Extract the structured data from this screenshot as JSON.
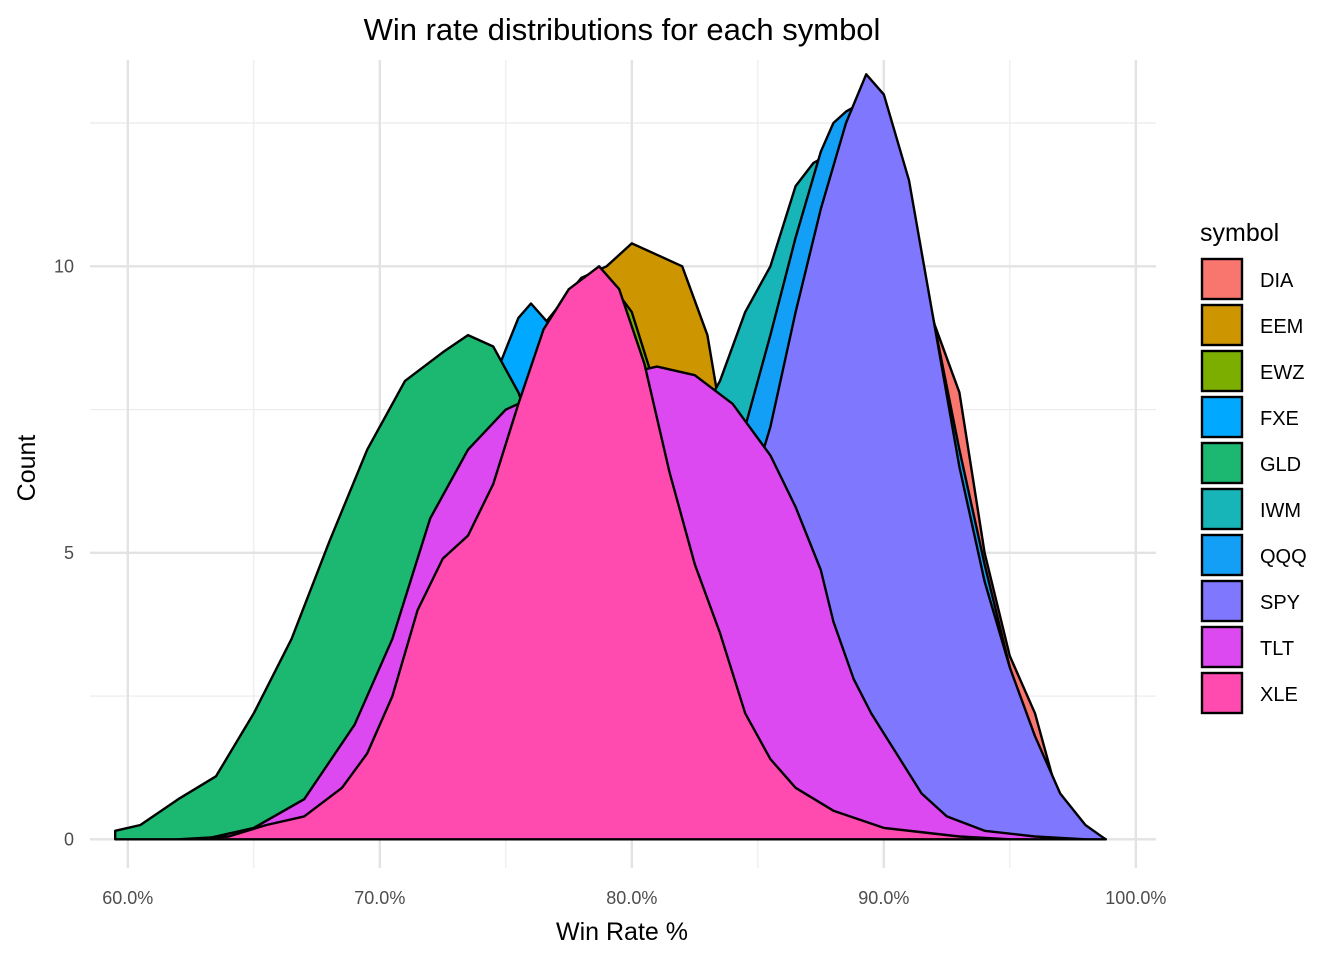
{
  "chart_data": {
    "type": "area",
    "title": "Win rate distributions for each symbol",
    "xlabel": "Win Rate %",
    "ylabel": "Count",
    "xlim": [
      58.5,
      100.8
    ],
    "ylim": [
      -0.5,
      13.6
    ],
    "x_ticks": [
      60,
      70,
      80,
      90,
      100
    ],
    "x_tick_labels": [
      "60.0%",
      "70.0%",
      "80.0%",
      "90.0%",
      "100.0%"
    ],
    "y_ticks": [
      0,
      5,
      10
    ],
    "y_tick_labels": [
      "0",
      "5",
      "10"
    ],
    "grid": true,
    "legend_title": "symbol",
    "legend_position": "right",
    "series": [
      {
        "name": "DIA",
        "color": "#F8766D",
        "points": [
          [
            78,
            0
          ],
          [
            80,
            0.8
          ],
          [
            82,
            2.5
          ],
          [
            84,
            5
          ],
          [
            86,
            8.5
          ],
          [
            88,
            10.3
          ],
          [
            89,
            10.8
          ],
          [
            90,
            10.5
          ],
          [
            91,
            11.1
          ],
          [
            92,
            9
          ],
          [
            93,
            7.8
          ],
          [
            94,
            5
          ],
          [
            95,
            3.2
          ],
          [
            96,
            2.2
          ],
          [
            97,
            0.6
          ],
          [
            98,
            0.2
          ],
          [
            98.8,
            0
          ]
        ]
      },
      {
        "name": "EEM",
        "color": "#CD9600",
        "points": [
          [
            66,
            0
          ],
          [
            68,
            0.6
          ],
          [
            70,
            1.6
          ],
          [
            72,
            3.5
          ],
          [
            74,
            6.3
          ],
          [
            76,
            8.7
          ],
          [
            78,
            9.8
          ],
          [
            79,
            10.0
          ],
          [
            80,
            10.4
          ],
          [
            81,
            10.2
          ],
          [
            82,
            10.0
          ],
          [
            83,
            8.8
          ],
          [
            84,
            6.2
          ],
          [
            86,
            3.5
          ],
          [
            88,
            1.6
          ],
          [
            90,
            0.5
          ],
          [
            93,
            0
          ]
        ]
      },
      {
        "name": "EWZ",
        "color": "#7CAE00",
        "points": [
          [
            66,
            0
          ],
          [
            68,
            0.5
          ],
          [
            70,
            1.5
          ],
          [
            72,
            3.4
          ],
          [
            74,
            6.0
          ],
          [
            76,
            8.5
          ],
          [
            78,
            9.5
          ],
          [
            79,
            9.8
          ],
          [
            80,
            9.2
          ],
          [
            81,
            7.8
          ],
          [
            82,
            6.2
          ],
          [
            84,
            3.2
          ],
          [
            86,
            1.2
          ],
          [
            88,
            0.3
          ],
          [
            90,
            0
          ]
        ]
      },
      {
        "name": "FXE",
        "color": "#00A9FF",
        "points": [
          [
            65,
            0
          ],
          [
            67,
            0.5
          ],
          [
            69,
            1.5
          ],
          [
            71,
            3.6
          ],
          [
            73,
            6.2
          ],
          [
            74.5,
            8.0
          ],
          [
            75.5,
            9.1
          ],
          [
            76,
            9.35
          ],
          [
            76.7,
            9.0
          ],
          [
            77.5,
            8.4
          ],
          [
            78.5,
            8.7
          ],
          [
            79.5,
            8.3
          ],
          [
            80.5,
            7.0
          ],
          [
            82,
            5.0
          ],
          [
            84,
            2.5
          ],
          [
            86,
            1.0
          ],
          [
            88,
            0.2
          ],
          [
            90,
            0
          ]
        ]
      },
      {
        "name": "GLD",
        "color": "#1CB771",
        "points": [
          [
            59.5,
            0.15
          ],
          [
            60.5,
            0.25
          ],
          [
            62,
            0.7
          ],
          [
            63.5,
            1.1
          ],
          [
            65,
            2.2
          ],
          [
            66.5,
            3.5
          ],
          [
            68,
            5.2
          ],
          [
            69.5,
            6.8
          ],
          [
            71,
            8.0
          ],
          [
            72.5,
            8.5
          ],
          [
            73.5,
            8.8
          ],
          [
            74.5,
            8.6
          ],
          [
            75.5,
            7.8
          ],
          [
            77,
            6.0
          ],
          [
            78.5,
            4.0
          ],
          [
            80,
            2.5
          ],
          [
            82,
            1.2
          ],
          [
            84,
            0.4
          ],
          [
            86,
            0.1
          ],
          [
            88,
            0
          ]
        ]
      },
      {
        "name": "IWM",
        "color": "#17B5B7",
        "points": [
          [
            70,
            0
          ],
          [
            72,
            0.3
          ],
          [
            74,
            1.0
          ],
          [
            76,
            2.5
          ],
          [
            78,
            4.0
          ],
          [
            80,
            5.5
          ],
          [
            82,
            6.8
          ],
          [
            83.5,
            8.0
          ],
          [
            84.5,
            9.2
          ],
          [
            85.5,
            10.0
          ],
          [
            86.5,
            11.4
          ],
          [
            87.2,
            11.8
          ],
          [
            88,
            12.0
          ],
          [
            88.5,
            12.4
          ],
          [
            89.5,
            12.8
          ],
          [
            90.5,
            11.8
          ],
          [
            91.5,
            9.5
          ],
          [
            92.5,
            7.5
          ],
          [
            93.5,
            5.0
          ],
          [
            95,
            2.8
          ],
          [
            96,
            1.5
          ],
          [
            97,
            0.6
          ],
          [
            98,
            0.2
          ],
          [
            98.8,
            0
          ]
        ]
      },
      {
        "name": "QQQ",
        "color": "#129FF5",
        "points": [
          [
            72,
            0
          ],
          [
            74,
            0.4
          ],
          [
            76,
            1.2
          ],
          [
            78,
            2.5
          ],
          [
            80,
            3.8
          ],
          [
            82,
            5.0
          ],
          [
            83.5,
            6.2
          ],
          [
            84.5,
            7.2
          ],
          [
            85.5,
            8.8
          ],
          [
            86.5,
            10.5
          ],
          [
            87.5,
            12.0
          ],
          [
            88,
            12.5
          ],
          [
            88.5,
            12.7
          ],
          [
            89.3,
            12.9
          ],
          [
            90,
            12.6
          ],
          [
            91,
            11.2
          ],
          [
            92,
            9.0
          ],
          [
            93,
            6.8
          ],
          [
            94,
            4.8
          ],
          [
            95,
            3.0
          ],
          [
            96,
            1.6
          ],
          [
            97,
            0.6
          ],
          [
            98,
            0.15
          ],
          [
            98.8,
            0
          ]
        ]
      },
      {
        "name": "SPY",
        "color": "#8077FF",
        "points": [
          [
            76,
            0
          ],
          [
            78,
            0.3
          ],
          [
            80,
            1.0
          ],
          [
            82,
            2.5
          ],
          [
            84,
            5.0
          ],
          [
            85.5,
            7.2
          ],
          [
            86.5,
            9.2
          ],
          [
            87.5,
            11.0
          ],
          [
            88.5,
            12.5
          ],
          [
            89.3,
            13.35
          ],
          [
            90,
            13.0
          ],
          [
            91,
            11.5
          ],
          [
            92,
            9.0
          ],
          [
            93,
            6.5
          ],
          [
            94,
            4.5
          ],
          [
            95,
            3.0
          ],
          [
            96,
            1.8
          ],
          [
            97,
            0.8
          ],
          [
            98,
            0.25
          ],
          [
            98.8,
            0
          ]
        ]
      },
      {
        "name": "TLT",
        "color": "#DC49F0",
        "points": [
          [
            63,
            0
          ],
          [
            65,
            0.2
          ],
          [
            67,
            0.7
          ],
          [
            69,
            2.0
          ],
          [
            70.5,
            3.5
          ],
          [
            72,
            5.6
          ],
          [
            73.5,
            6.8
          ],
          [
            75,
            7.5
          ],
          [
            76.5,
            7.8
          ],
          [
            78,
            8.0
          ],
          [
            79.5,
            8.1
          ],
          [
            81,
            8.25
          ],
          [
            82.5,
            8.1
          ],
          [
            84,
            7.6
          ],
          [
            85.5,
            6.7
          ],
          [
            86.5,
            5.8
          ],
          [
            87.5,
            4.7
          ],
          [
            88,
            3.8
          ],
          [
            88.8,
            2.8
          ],
          [
            89.5,
            2.2
          ],
          [
            90.5,
            1.5
          ],
          [
            91.5,
            0.8
          ],
          [
            92.5,
            0.4
          ],
          [
            94,
            0.15
          ],
          [
            96,
            0.05
          ],
          [
            98,
            0
          ]
        ]
      },
      {
        "name": "XLE",
        "color": "#FF4AB0",
        "points": [
          [
            62,
            0
          ],
          [
            64,
            0.05
          ],
          [
            65.5,
            0.25
          ],
          [
            67,
            0.4
          ],
          [
            68.5,
            0.9
          ],
          [
            69.5,
            1.5
          ],
          [
            70.5,
            2.5
          ],
          [
            71.5,
            4.0
          ],
          [
            72.5,
            4.9
          ],
          [
            73.5,
            5.3
          ],
          [
            74.5,
            6.2
          ],
          [
            75.5,
            7.6
          ],
          [
            76.5,
            8.9
          ],
          [
            77.5,
            9.6
          ],
          [
            78.7,
            10.0
          ],
          [
            79.5,
            9.6
          ],
          [
            80.5,
            8.3
          ],
          [
            81.5,
            6.4
          ],
          [
            82.5,
            4.8
          ],
          [
            83.5,
            3.6
          ],
          [
            84.5,
            2.2
          ],
          [
            85.5,
            1.4
          ],
          [
            86.5,
            0.9
          ],
          [
            88,
            0.5
          ],
          [
            90,
            0.2
          ],
          [
            93,
            0.05
          ],
          [
            95,
            0
          ]
        ]
      }
    ]
  }
}
